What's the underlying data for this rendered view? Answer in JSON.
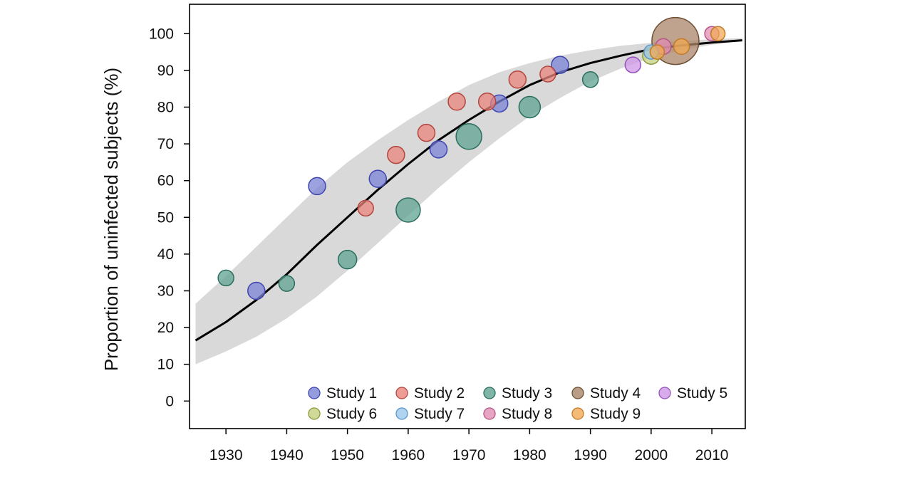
{
  "chart_data": {
    "type": "scatter",
    "title": "",
    "xlabel": "",
    "ylabel": "Proportion of uninfected subjects (%)",
    "xlim": [
      1924,
      2015.5
    ],
    "ylim": [
      -7.5,
      108
    ],
    "x_ticks": [
      "1930",
      "1940",
      "1950",
      "1960",
      "1970",
      "1980",
      "1990",
      "2000",
      "2010"
    ],
    "y_ticks": [
      "0",
      "10",
      "20",
      "30",
      "40",
      "50",
      "60",
      "70",
      "80",
      "90",
      "100"
    ],
    "grid": false,
    "legend_position": "bottom-right",
    "series": [
      {
        "name": "Study 1",
        "color": "#7B83D6",
        "stroke": "#3F46B0",
        "points": [
          {
            "x": 1935,
            "y": 30,
            "r": 12
          },
          {
            "x": 1945,
            "y": 58.5,
            "r": 12
          },
          {
            "x": 1955,
            "y": 60.5,
            "r": 12
          },
          {
            "x": 1965,
            "y": 68.5,
            "r": 12
          },
          {
            "x": 1975,
            "y": 81,
            "r": 12
          },
          {
            "x": 1985,
            "y": 91.5,
            "r": 12
          }
        ]
      },
      {
        "name": "Study 2",
        "color": "#E8847C",
        "stroke": "#B4453D",
        "points": [
          {
            "x": 1953,
            "y": 52.5,
            "r": 11
          },
          {
            "x": 1958,
            "y": 67,
            "r": 12
          },
          {
            "x": 1963,
            "y": 73,
            "r": 12
          },
          {
            "x": 1968,
            "y": 81.5,
            "r": 12
          },
          {
            "x": 1973,
            "y": 81.5,
            "r": 12
          },
          {
            "x": 1978,
            "y": 87.5,
            "r": 12
          },
          {
            "x": 1983,
            "y": 89,
            "r": 11
          }
        ]
      },
      {
        "name": "Study 3",
        "color": "#5FA390",
        "stroke": "#2A6F5E",
        "points": [
          {
            "x": 1930,
            "y": 33.5,
            "r": 11
          },
          {
            "x": 1940,
            "y": 32,
            "r": 11
          },
          {
            "x": 1950,
            "y": 38.5,
            "r": 13
          },
          {
            "x": 1960,
            "y": 52,
            "r": 17
          },
          {
            "x": 1970,
            "y": 72,
            "r": 18
          },
          {
            "x": 1980,
            "y": 80,
            "r": 15
          },
          {
            "x": 1990,
            "y": 87.5,
            "r": 11
          }
        ]
      },
      {
        "name": "Study 4",
        "color": "#A98468",
        "stroke": "#6E4F33",
        "points": [
          {
            "x": 2004,
            "y": 98,
            "r": 33
          }
        ]
      },
      {
        "name": "Study 5",
        "color": "#CE97E6",
        "stroke": "#9452B8",
        "points": [
          {
            "x": 1997,
            "y": 91.5,
            "r": 11
          }
        ]
      },
      {
        "name": "Study 6",
        "color": "#C5CF7E",
        "stroke": "#8A9A3A",
        "points": [
          {
            "x": 2000,
            "y": 94,
            "r": 12
          }
        ]
      },
      {
        "name": "Study 7",
        "color": "#9CC8EC",
        "stroke": "#5895CB",
        "points": [
          {
            "x": 2000,
            "y": 95,
            "r": 10
          }
        ]
      },
      {
        "name": "Study 8",
        "color": "#E08EB3",
        "stroke": "#B55585",
        "points": [
          {
            "x": 2002,
            "y": 96.5,
            "r": 11
          },
          {
            "x": 2010,
            "y": 100,
            "r": 10
          }
        ]
      },
      {
        "name": "Study 9",
        "color": "#F0AA55",
        "stroke": "#C27A25",
        "points": [
          {
            "x": 2001,
            "y": 95,
            "r": 10
          },
          {
            "x": 2005,
            "y": 96.5,
            "r": 11
          },
          {
            "x": 2011,
            "y": 100,
            "r": 10
          }
        ]
      }
    ],
    "fit_curve": {
      "x": [
        1925,
        1930,
        1935,
        1940,
        1945,
        1950,
        1955,
        1960,
        1965,
        1970,
        1975,
        1980,
        1985,
        1990,
        1995,
        2000,
        2005,
        2010,
        2015
      ],
      "y": [
        16.5,
        21.5,
        27.5,
        34.5,
        42.5,
        50,
        57.5,
        64.5,
        71,
        76.5,
        81.5,
        86,
        89.5,
        92,
        94,
        95.8,
        96.8,
        97.6,
        98.2
      ],
      "band_lower": [
        10,
        13.5,
        17.5,
        22.5,
        28.5,
        35.5,
        43,
        50.5,
        58,
        65,
        71.5,
        77.5,
        82.5,
        87,
        90.5,
        93.5,
        95.5,
        97,
        98
      ],
      "band_upper": [
        26.5,
        34,
        42,
        50,
        58,
        65,
        71,
        76.5,
        81.5,
        86,
        89.5,
        92,
        94,
        95.5,
        96.7,
        97.5,
        98,
        98.5,
        98.8
      ]
    }
  }
}
